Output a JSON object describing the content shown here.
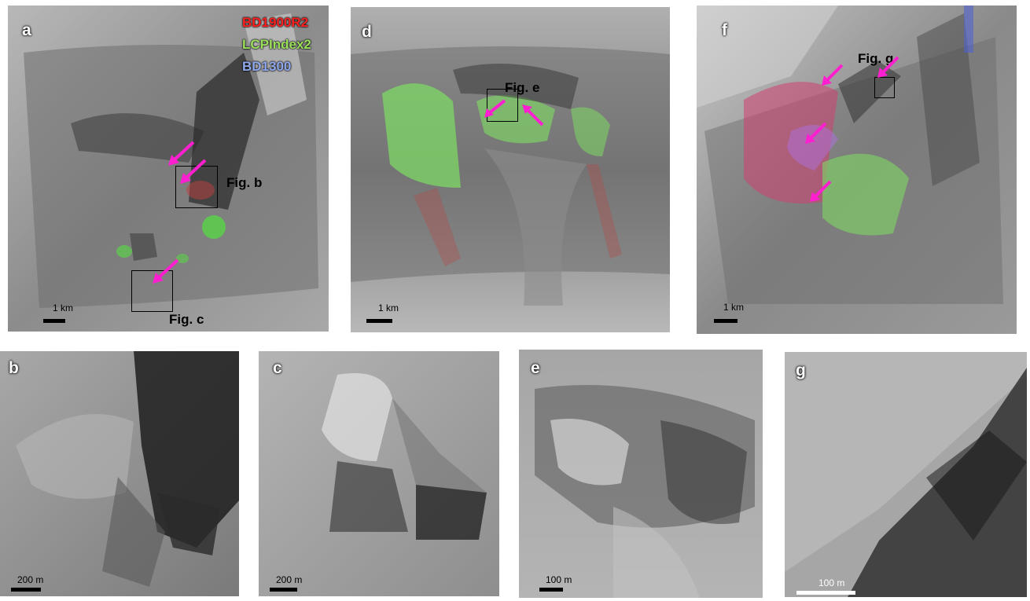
{
  "legend": {
    "items": [
      {
        "label": "BD1900R2",
        "color": "#ff2020"
      },
      {
        "label": "LCPIndex2",
        "color": "#9be05a"
      },
      {
        "label": "BD1300",
        "color": "#8fa8ee"
      }
    ]
  },
  "panels": {
    "a": {
      "letter": "a",
      "scale_label": "1 km",
      "fig_refs": [
        "Fig. b",
        "Fig. c"
      ]
    },
    "d": {
      "letter": "d",
      "scale_label": "1 km",
      "fig_refs": [
        "Fig. e"
      ]
    },
    "f": {
      "letter": "f",
      "scale_label": "1 km",
      "fig_refs": [
        "Fig. g"
      ]
    },
    "b": {
      "letter": "b",
      "scale_label": "200 m"
    },
    "c": {
      "letter": "c",
      "scale_label": "200 m"
    },
    "e": {
      "letter": "e",
      "scale_label": "100 m"
    },
    "g": {
      "letter": "g",
      "scale_label": "100 m"
    }
  },
  "colors": {
    "arrow": "#ff1fd0",
    "frame": "#000000"
  }
}
